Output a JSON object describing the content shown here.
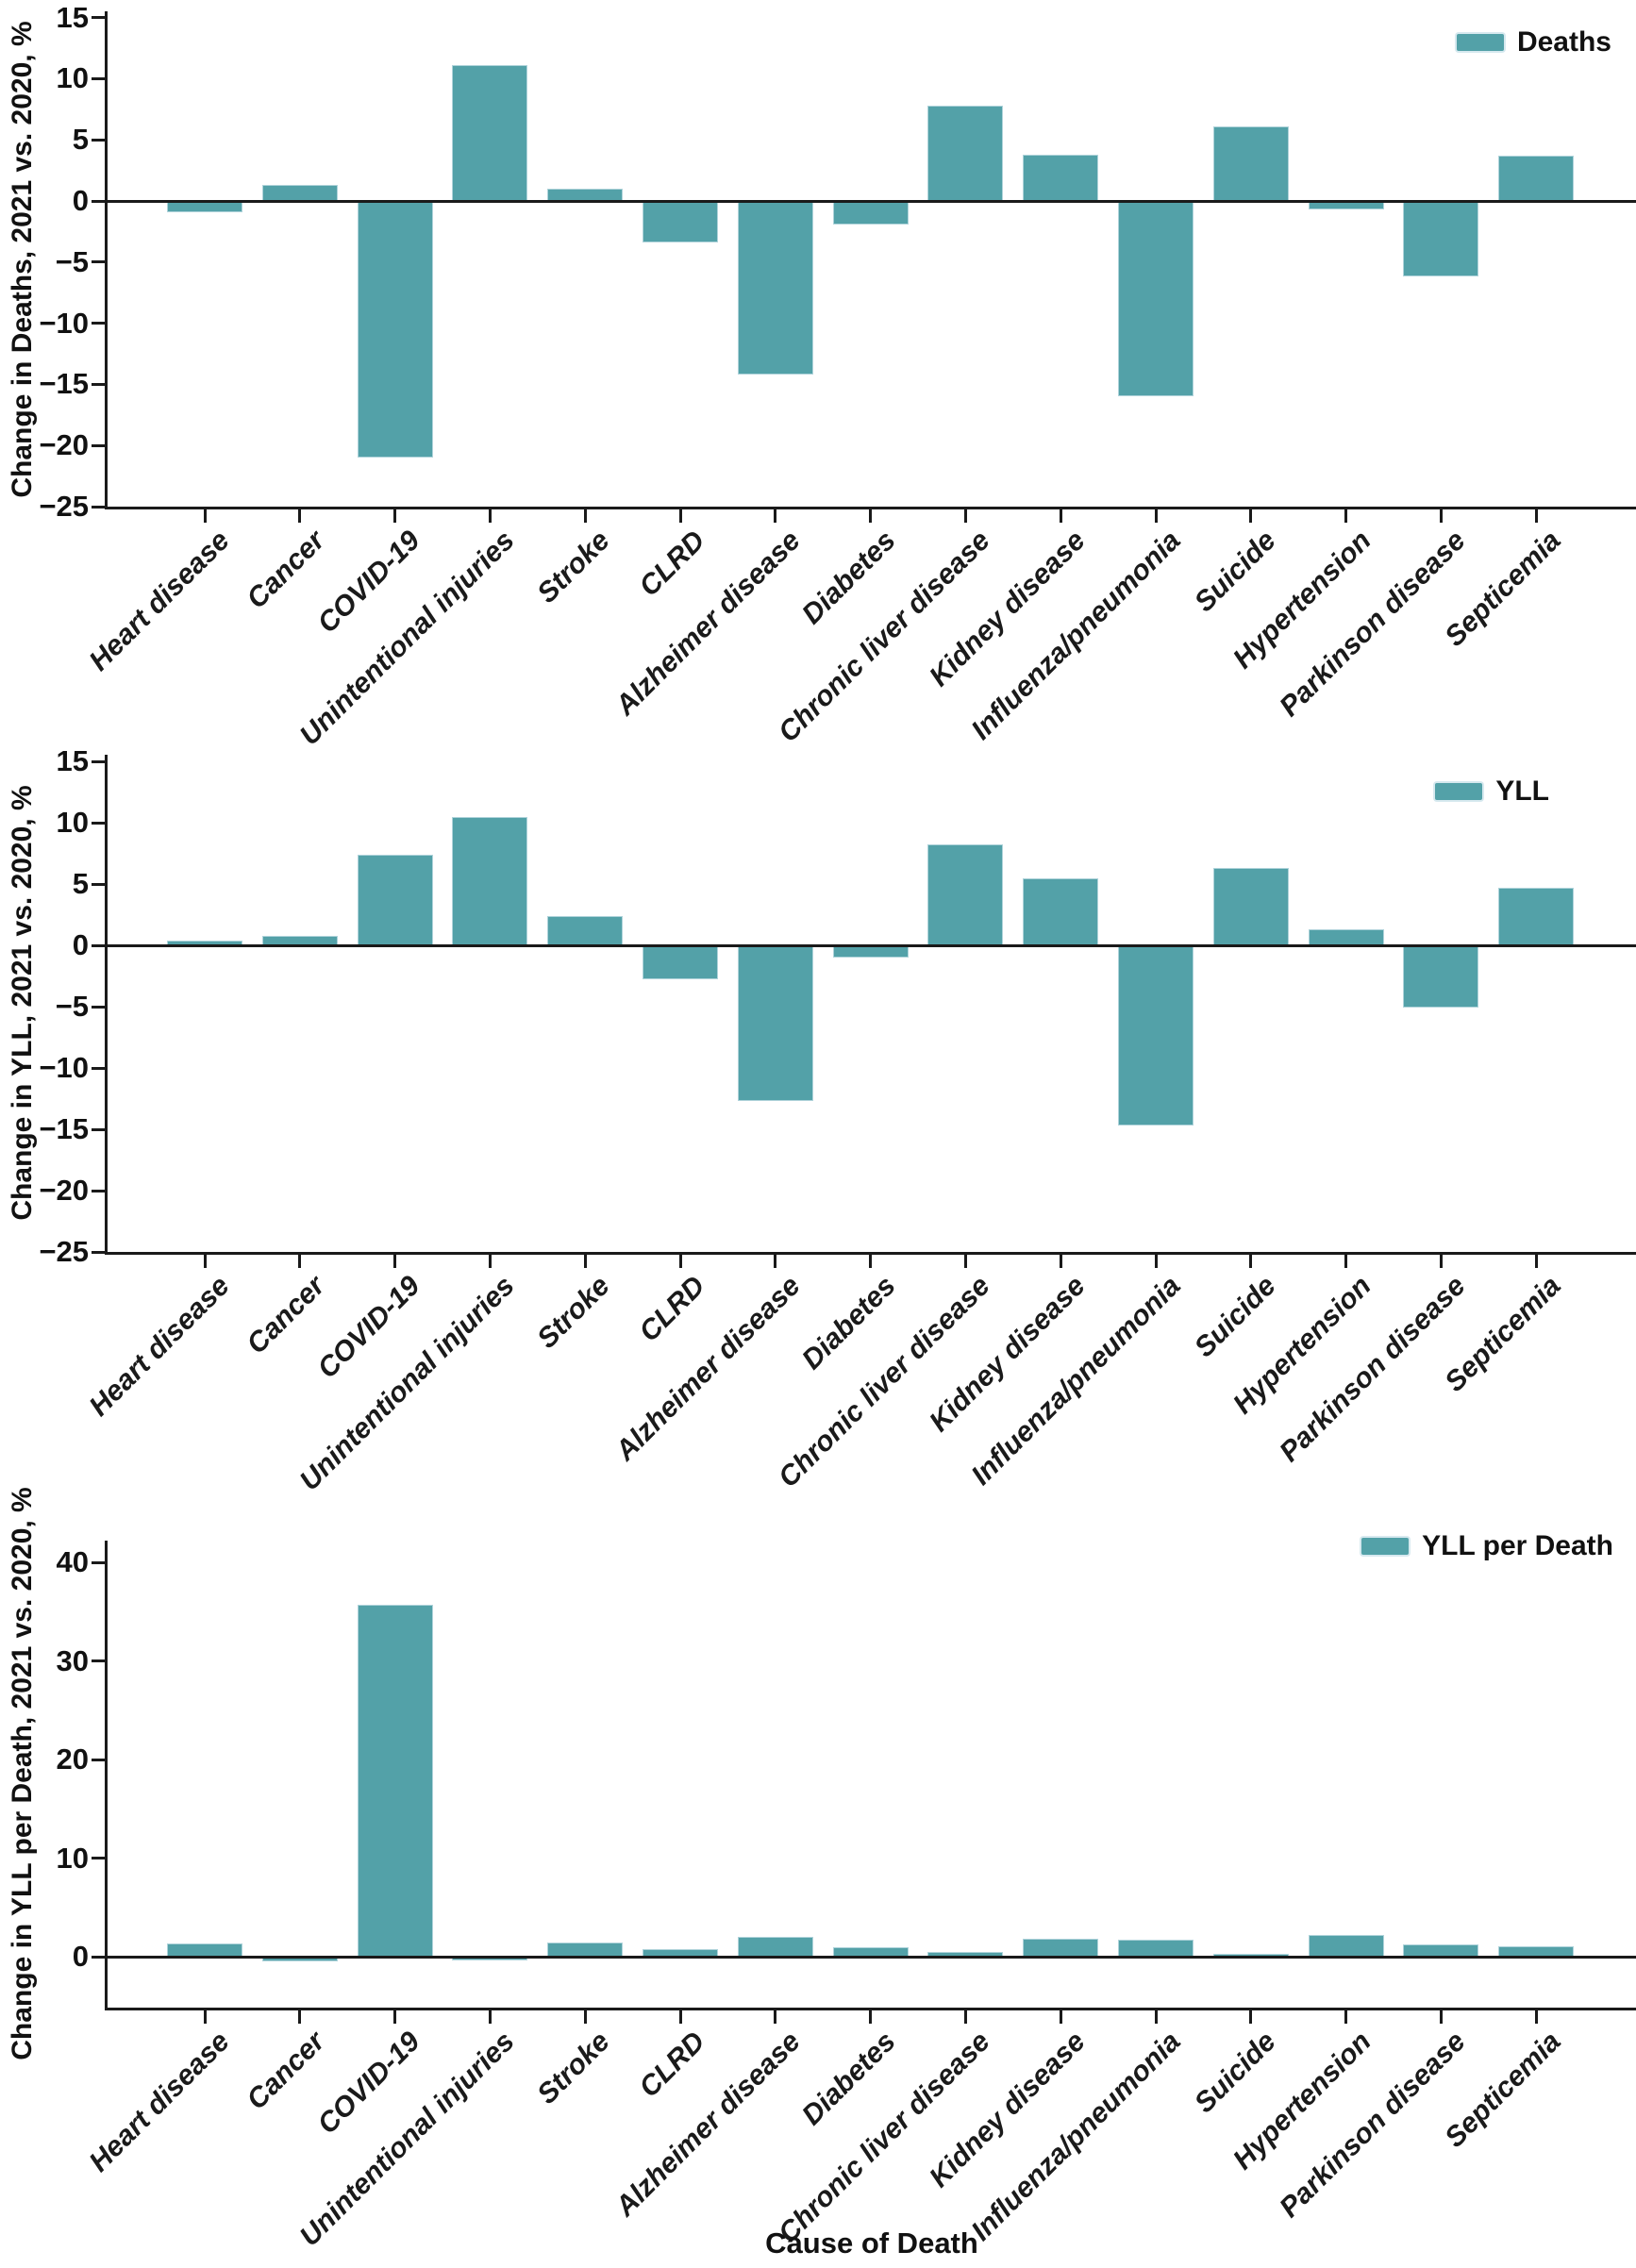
{
  "styles": {
    "bar_color": "#53A1A8",
    "axis_color": "#1a1a1a",
    "text_color": "#111111",
    "background": "#ffffff"
  },
  "chart_data": [
    {
      "type": "bar",
      "title": "",
      "series_name": "Deaths",
      "legend": [
        "Deaths"
      ],
      "legend_position": "upper right",
      "xlabel": "",
      "ylabel": "Change in Deaths, 2021 vs. 2020, %",
      "categories": [
        "Heart disease",
        "Cancer",
        "COVID-19",
        "Unintentional injuries",
        "Stroke",
        "CLRD",
        "Alzheimer disease",
        "Diabetes",
        "Chronic liver disease",
        "Kidney disease",
        "Influenza/pneumonia",
        "Suicide",
        "Hypertension",
        "Parkinson disease",
        "Septicemia"
      ],
      "values": [
        -0.9,
        1.3,
        -21.0,
        11.1,
        1.0,
        -3.4,
        -14.2,
        -1.9,
        7.8,
        3.8,
        -16.0,
        6.1,
        -0.7,
        -6.2,
        3.7
      ],
      "ylim": [
        -25,
        15.5
      ],
      "yticks": [
        15,
        10,
        5,
        0,
        -5,
        -10,
        -15,
        -20,
        -25
      ],
      "grid": false,
      "zero_line": true,
      "bar_color": "#53A1A8"
    },
    {
      "type": "bar",
      "title": "",
      "series_name": "YLL",
      "legend": [
        "YLL"
      ],
      "legend_position": "upper right",
      "xlabel": "",
      "ylabel": "Change in YLL, 2021 vs. 2020, %",
      "categories": [
        "Heart disease",
        "Cancer",
        "COVID-19",
        "Unintentional injuries",
        "Stroke",
        "CLRD",
        "Alzheimer disease",
        "Diabetes",
        "Chronic liver disease",
        "Kidney disease",
        "Influenza/pneumonia",
        "Suicide",
        "Hypertension",
        "Parkinson disease",
        "Septicemia"
      ],
      "values": [
        0.4,
        0.8,
        7.4,
        10.5,
        2.4,
        -2.8,
        -12.7,
        -1.0,
        8.2,
        5.5,
        -14.7,
        6.3,
        1.3,
        -5.1,
        4.7
      ],
      "ylim": [
        -25,
        15.5
      ],
      "yticks": [
        15,
        10,
        5,
        0,
        -5,
        -10,
        -15,
        -20,
        -25
      ],
      "grid": false,
      "zero_line": true,
      "bar_color": "#53A1A8"
    },
    {
      "type": "bar",
      "title": "",
      "series_name": "YLL per Death",
      "legend": [
        "YLL per Death"
      ],
      "legend_position": "upper right",
      "xlabel": "Cause of Death",
      "ylabel": "Change in YLL per Death, 2021 vs. 2020, %",
      "categories": [
        "Heart disease",
        "Cancer",
        "COVID-19",
        "Unintentional injuries",
        "Stroke",
        "CLRD",
        "Alzheimer disease",
        "Diabetes",
        "Chronic liver disease",
        "Kidney disease",
        "Influenza/pneumonia",
        "Suicide",
        "Hypertension",
        "Parkinson disease",
        "Septicemia"
      ],
      "values": [
        1.3,
        -0.5,
        35.7,
        -0.4,
        1.4,
        0.8,
        2.0,
        1.0,
        0.5,
        1.8,
        1.7,
        0.3,
        2.2,
        1.2,
        1.1
      ],
      "ylim": [
        -5.2,
        42.2
      ],
      "yticks": [
        40,
        30,
        20,
        10,
        0
      ],
      "grid": false,
      "zero_line": true,
      "bar_color": "#53A1A8"
    }
  ]
}
